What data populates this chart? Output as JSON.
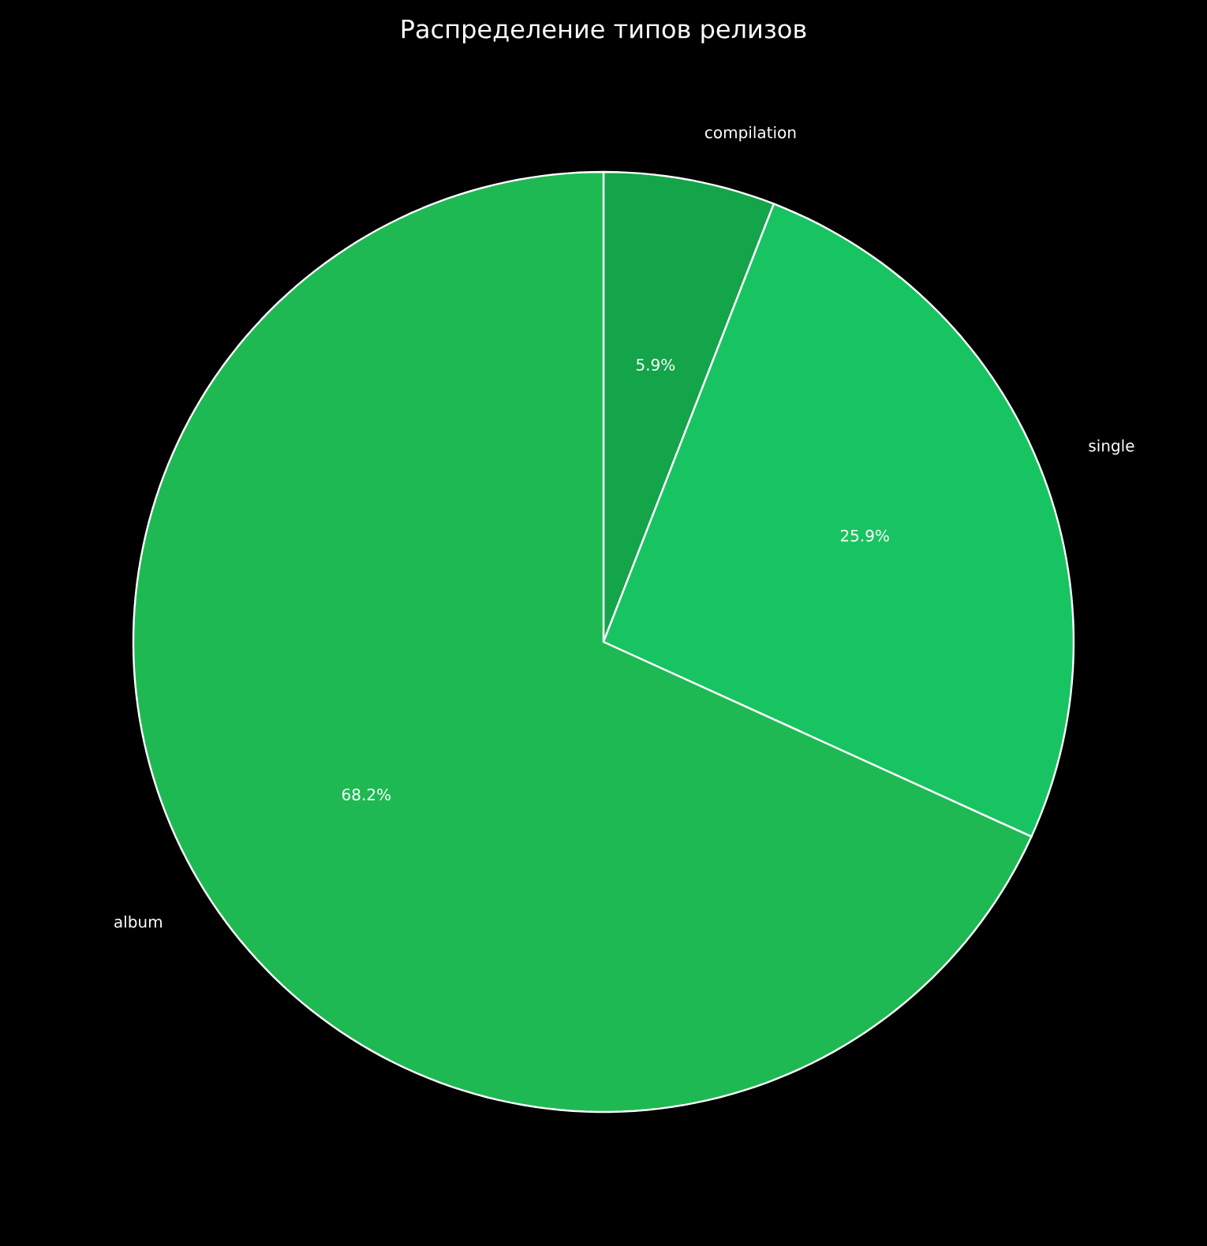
{
  "chart_data": {
    "type": "pie",
    "title": "Распределение типов релизов",
    "categories": [
      "compilation",
      "single",
      "album"
    ],
    "values": [
      5.9,
      25.9,
      68.2
    ],
    "value_labels": [
      "5.9%",
      "25.9%",
      "68.2%"
    ],
    "colors": [
      "#14a44a",
      "#18c461",
      "#1fb954"
    ]
  }
}
